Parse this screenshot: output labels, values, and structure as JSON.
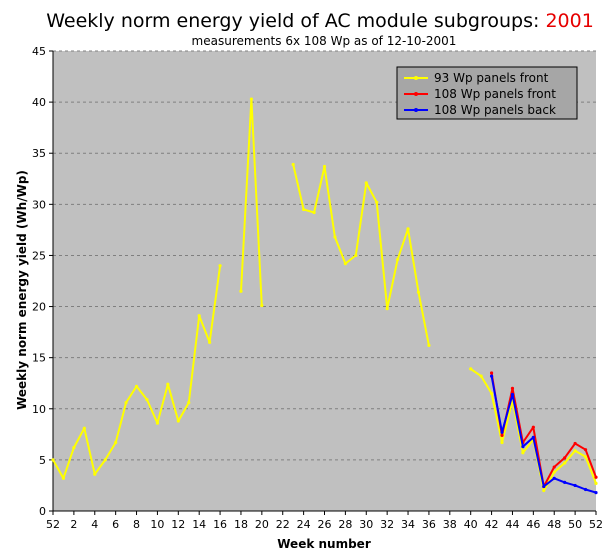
{
  "chart_data": {
    "type": "line",
    "title": "Weekly norm energy yield of AC module subgroups: ",
    "title_year": "2001",
    "subtitle": "measurements 6x 108 Wp as of 12-10-2001",
    "xlabel": "Week number",
    "ylabel": "Weekly norm energy yield (Wh/Wp)",
    "ylim": [
      0,
      45
    ],
    "y_ticks": [
      0,
      5,
      10,
      15,
      20,
      25,
      30,
      35,
      40,
      45
    ],
    "x_tick_labels": [
      "52",
      "2",
      "4",
      "6",
      "8",
      "10",
      "12",
      "14",
      "16",
      "18",
      "20",
      "22",
      "24",
      "26",
      "28",
      "30",
      "32",
      "34",
      "36",
      "38",
      "40",
      "42",
      "44",
      "46",
      "48",
      "50",
      "52"
    ],
    "categories": [
      "52",
      "1",
      "2",
      "3",
      "4",
      "5",
      "6",
      "7",
      "8",
      "9",
      "10",
      "11",
      "12",
      "13",
      "14",
      "15",
      "16",
      "17",
      "18",
      "19",
      "20",
      "21",
      "22",
      "23",
      "24",
      "25",
      "26",
      "27",
      "28",
      "29",
      "30",
      "31",
      "32",
      "33",
      "34",
      "35",
      "36",
      "37",
      "38",
      "39",
      "40",
      "41",
      "42",
      "43",
      "44",
      "45",
      "46",
      "47",
      "48",
      "49",
      "50",
      "51",
      "52"
    ],
    "grid": "horizontal",
    "legend_position": "top-right",
    "plot_background": "#c0c0c0",
    "series": [
      {
        "name": "93 Wp panels front",
        "color": "#ffff00",
        "values": [
          5.0,
          3.2,
          6.2,
          8.1,
          3.6,
          5.0,
          6.7,
          10.6,
          12.2,
          10.9,
          8.6,
          12.4,
          8.8,
          10.6,
          19.1,
          16.5,
          24.0,
          null,
          21.5,
          40.3,
          20.1,
          null,
          null,
          33.9,
          29.5,
          29.2,
          33.7,
          26.8,
          24.2,
          25.0,
          32.1,
          30.2,
          19.8,
          24.6,
          27.6,
          21.4,
          16.2,
          null,
          null,
          null,
          13.9,
          13.2,
          11.5,
          6.7,
          10.8,
          5.7,
          7.0,
          2.0,
          3.8,
          4.7,
          5.9,
          5.3,
          2.7
        ]
      },
      {
        "name": "108 Wp panels front",
        "color": "#ff0000",
        "values": [
          null,
          null,
          null,
          null,
          null,
          null,
          null,
          null,
          null,
          null,
          null,
          null,
          null,
          null,
          null,
          null,
          null,
          null,
          null,
          null,
          null,
          null,
          null,
          null,
          null,
          null,
          null,
          null,
          null,
          null,
          null,
          null,
          null,
          null,
          null,
          null,
          null,
          null,
          null,
          null,
          null,
          null,
          13.5,
          7.4,
          12.0,
          6.7,
          8.2,
          2.4,
          4.3,
          5.2,
          6.6,
          6.0,
          3.3
        ]
      },
      {
        "name": "108 Wp panels back",
        "color": "#0000ff",
        "values": [
          null,
          null,
          null,
          null,
          null,
          null,
          null,
          null,
          null,
          null,
          null,
          null,
          null,
          null,
          null,
          null,
          null,
          null,
          null,
          null,
          null,
          null,
          null,
          null,
          null,
          null,
          null,
          null,
          null,
          null,
          null,
          null,
          null,
          null,
          null,
          null,
          null,
          null,
          null,
          null,
          null,
          null,
          13.2,
          7.7,
          11.4,
          6.3,
          7.2,
          2.4,
          3.2,
          2.8,
          2.5,
          2.1,
          1.8
        ]
      }
    ]
  }
}
